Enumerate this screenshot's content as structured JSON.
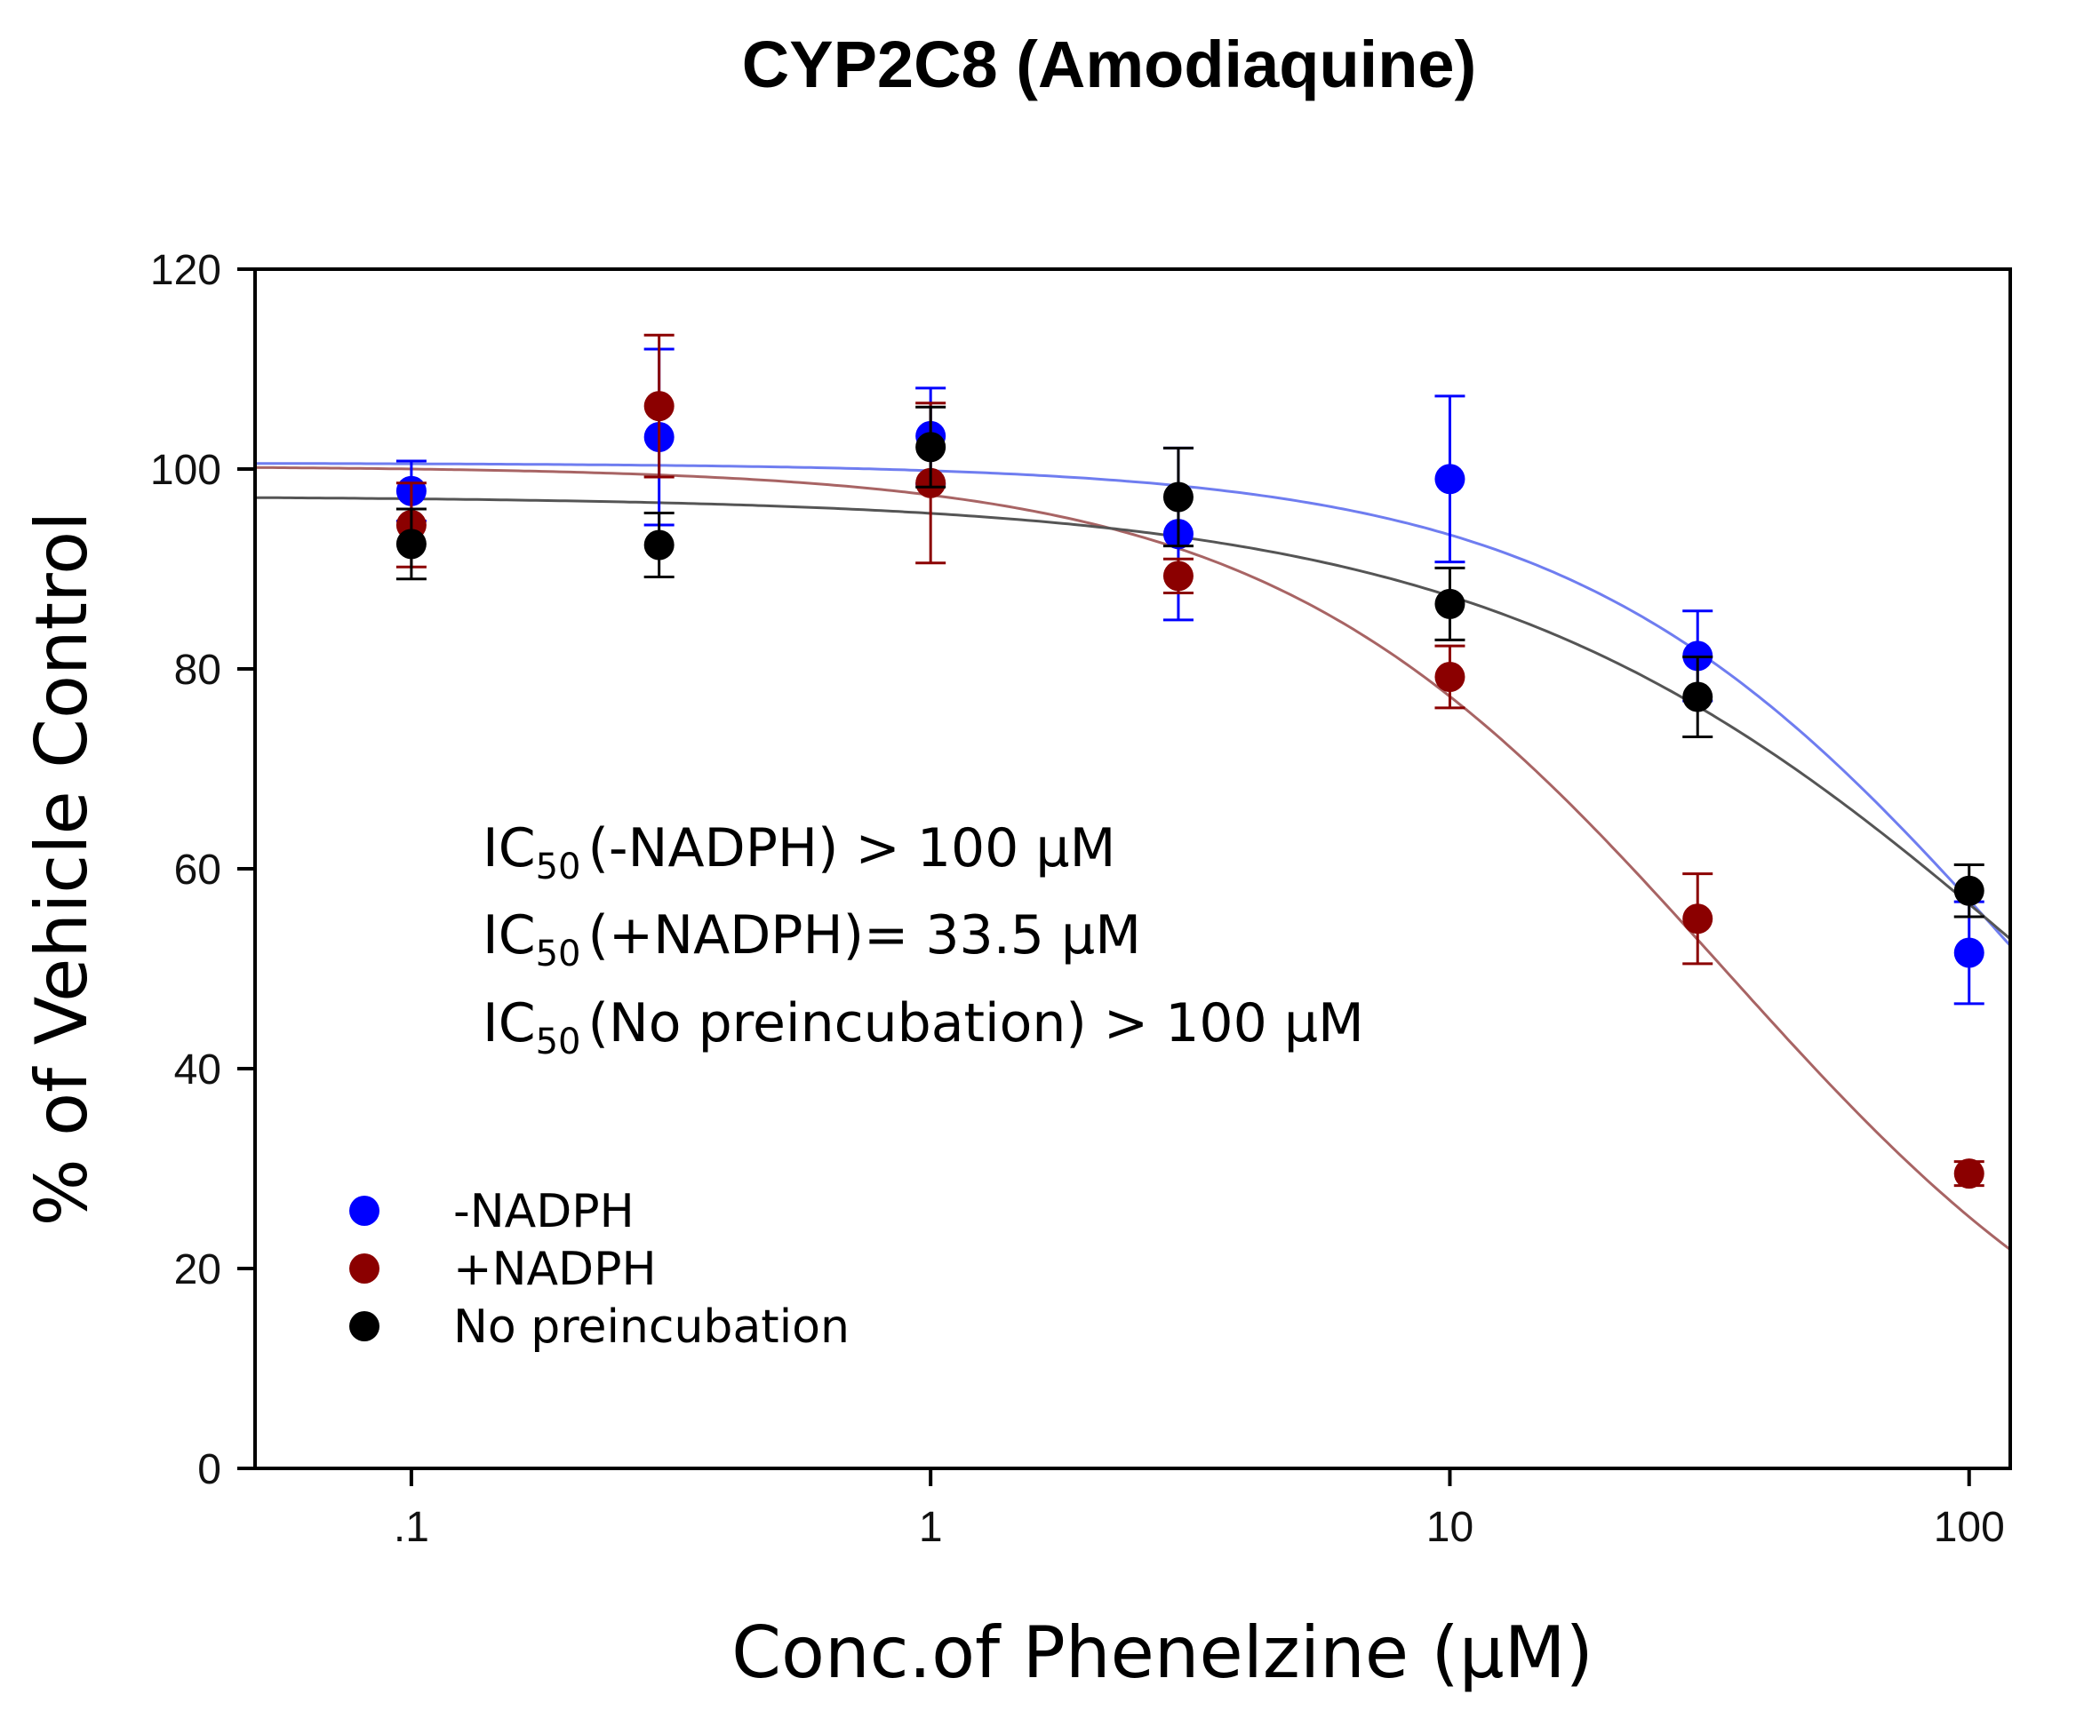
{
  "chart_data": {
    "type": "scatter",
    "title": "CYP2C8 (Amodiaquine)",
    "xlabel": "Conc.of Phenelzine (µM)",
    "ylabel": "% of Vehicle Control",
    "x_scale": "log",
    "xlim": [
      0.05,
      120
    ],
    "ylim": [
      0,
      120
    ],
    "x_ticks": [
      0.1,
      1,
      10,
      100
    ],
    "x_tick_labels": [
      ".1",
      "1",
      "10",
      "100"
    ],
    "y_ticks": [
      0,
      20,
      40,
      60,
      80,
      100,
      120
    ],
    "y_tick_labels": [
      "0",
      "20",
      "40",
      "60",
      "80",
      "100",
      "120"
    ],
    "legend_position": "bottom-left",
    "series": [
      {
        "name": "-NADPH",
        "color": "#0000ff",
        "line_color": "#6f7df0",
        "x": [
          0.1,
          0.3,
          1,
          3,
          10,
          30,
          100
        ],
        "y": [
          97.8,
          103.2,
          103.3,
          93.5,
          99.0,
          81.3,
          51.6
        ],
        "err": [
          3.0,
          8.8,
          4.8,
          8.6,
          8.3,
          4.5,
          5.1
        ],
        "fit": {
          "top": 100.6,
          "ic50": 130,
          "hill": 1.0
        }
      },
      {
        "name": "+NADPH",
        "color": "#8b0000",
        "line_color": "#a86464",
        "x": [
          0.1,
          0.3,
          1,
          3,
          10,
          30,
          100
        ],
        "y": [
          94.4,
          106.3,
          98.6,
          89.3,
          79.2,
          55.0,
          29.5
        ],
        "err": [
          4.2,
          7.1,
          8.0,
          1.7,
          3.1,
          4.5,
          1.2
        ],
        "fit": {
          "top": 100.3,
          "ic50": 33.5,
          "hill": 1.0
        }
      },
      {
        "name": "No preincubation",
        "color": "#000000",
        "line_color": "#555555",
        "x": [
          0.1,
          0.3,
          1,
          3,
          10,
          30,
          100
        ],
        "y": [
          92.5,
          92.4,
          102.2,
          97.2,
          86.5,
          77.2,
          57.8
        ],
        "err": [
          3.5,
          3.2,
          4.0,
          4.9,
          3.6,
          4.0,
          2.6
        ],
        "fit": {
          "top": 97.3,
          "ic50": 150,
          "hill": 0.8
        }
      }
    ],
    "annotations": [
      {
        "main": "IC",
        "sub": "50",
        "rest": "(-NADPH) > 100 µM"
      },
      {
        "main": "IC",
        "sub": "50",
        "rest": "(+NADPH)= 33.5 µM"
      },
      {
        "main": "IC",
        "sub": "50",
        "rest": "(No preincubation) > 100 µM"
      }
    ]
  }
}
